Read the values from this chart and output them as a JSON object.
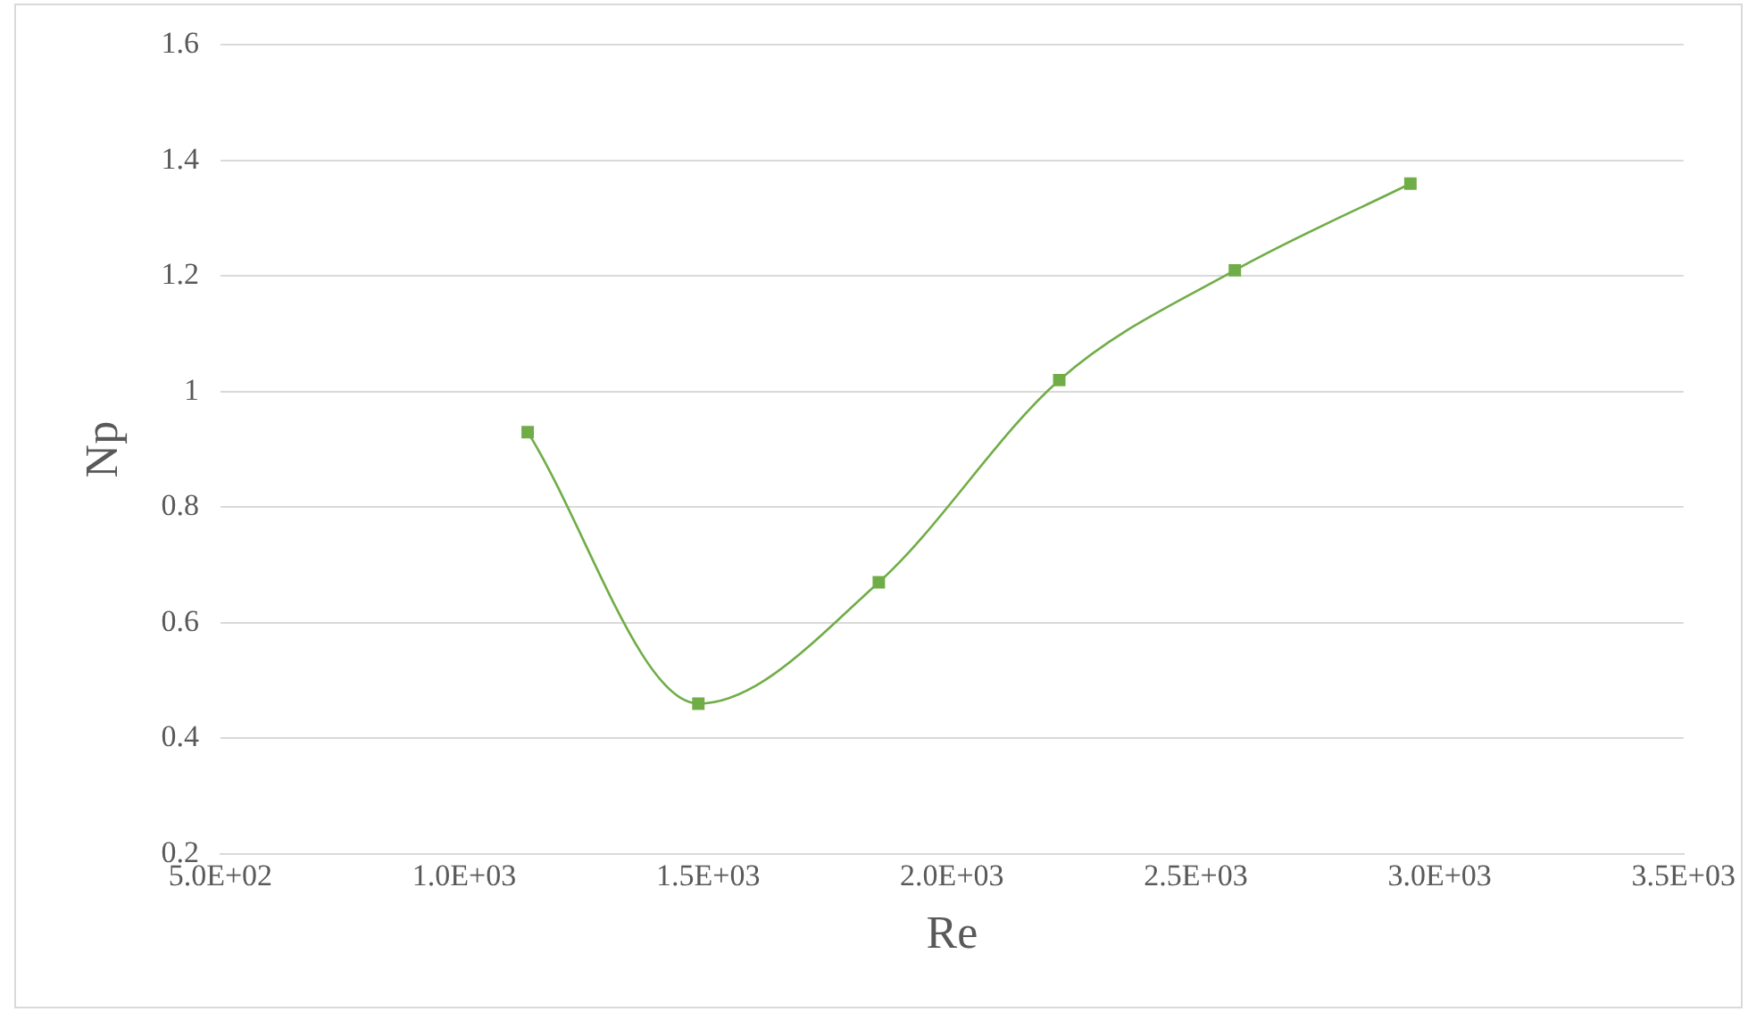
{
  "chart_data": {
    "type": "line",
    "xlabel": "Re",
    "ylabel": "Np",
    "x": [
      1130,
      1480,
      1850,
      2220,
      2580,
      2940
    ],
    "series": [
      {
        "color": "#70ad47",
        "values": [
          0.93,
          0.46,
          0.67,
          1.02,
          1.21,
          1.36
        ]
      }
    ],
    "xlim": [
      500,
      3500
    ],
    "xticks": [
      {
        "value": 500,
        "label": "5.0E+02"
      },
      {
        "value": 1000,
        "label": "1.0E+03"
      },
      {
        "value": 1500,
        "label": "1.5E+03"
      },
      {
        "value": 2000,
        "label": "2.0E+03"
      },
      {
        "value": 2500,
        "label": "2.5E+03"
      },
      {
        "value": 3000,
        "label": "3.0E+03"
      },
      {
        "value": 3500,
        "label": "3.5E+03"
      }
    ],
    "ylim": [
      0.2,
      1.6
    ],
    "yticks": [
      0.2,
      0.4,
      0.6,
      0.8,
      1,
      1.2,
      1.4,
      1.6
    ],
    "grid": "y",
    "legend": false,
    "marker": "square",
    "line_style": "solid"
  }
}
